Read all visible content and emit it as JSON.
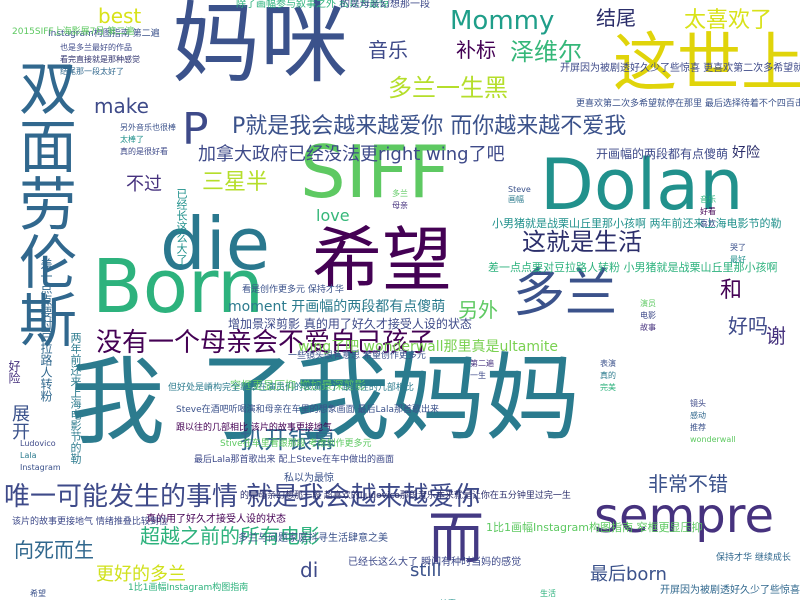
{
  "words": [
    {
      "text": "我",
      "color": "#2c7b8e"
    },
    {
      "text": "了我妈妈",
      "color": "#2a7b8e"
    },
    {
      "text": "妈咪",
      "color": "#3b528b"
    },
    {
      "text": "Born",
      "color": "#2db27d"
    },
    {
      "text": "die",
      "color": "#2a788e"
    },
    {
      "text": "SIFF",
      "color": "#5ec962"
    },
    {
      "text": "希望",
      "color": "#440154"
    },
    {
      "text": "Dolan",
      "color": "#21918c"
    },
    {
      "text": "这世上",
      "color": "#e0d40a"
    },
    {
      "text": "双面劳伦斯",
      "color": "#31688e"
    },
    {
      "text": "P就是我会越来越爱你 而你越来越不爱我",
      "color": "#3b528b"
    },
    {
      "text": "P",
      "color": "#3e4a89"
    },
    {
      "text": "sempre",
      "color": "#46327e"
    },
    {
      "text": "多兰",
      "color": "#3b528b"
    },
    {
      "text": "而",
      "color": "#443a83"
    },
    {
      "text": "唯一可能发生的事情 就是我会越来越爱你",
      "color": "#3e4a89"
    },
    {
      "text": "没有一个母亲会不爱自己孩子",
      "color": "#440154"
    },
    {
      "text": "Mommy",
      "color": "#1f9e89"
    },
    {
      "text": "太喜欢了",
      "color": "#d8e219"
    },
    {
      "text": "泽维尔",
      "color": "#35b779"
    },
    {
      "text": "多兰一生黑",
      "color": "#b5de2b"
    },
    {
      "text": "加拿大政府已经没法更right wing了吧",
      "color": "#3e4a89"
    },
    {
      "text": "三星半",
      "color": "#b5de2b"
    },
    {
      "text": "扒开银幕",
      "color": "#31688e"
    },
    {
      "text": "这就是生活",
      "color": "#2c2f6b"
    },
    {
      "text": "超越之前的所有电影",
      "color": "#2db27d"
    },
    {
      "text": "向死而生",
      "color": "#31688e"
    },
    {
      "text": "更好的多兰",
      "color": "#d0e11c"
    },
    {
      "text": "最后born",
      "color": "#3b528b"
    },
    {
      "text": "非常不错",
      "color": "#3b528b"
    },
    {
      "text": "make",
      "color": "#3e4a89"
    },
    {
      "text": "best",
      "color": "#d8e219"
    },
    {
      "text": "音乐",
      "color": "#3e4a89"
    },
    {
      "text": "补标",
      "color": "#440154"
    },
    {
      "text": "结尾",
      "color": "#2c2f6b"
    },
    {
      "text": "不过",
      "color": "#46327e"
    },
    {
      "text": "love",
      "color": "#35b779"
    },
    {
      "text": "另外",
      "color": "#5ec962"
    },
    {
      "text": "和",
      "color": "#440154"
    },
    {
      "text": "谢",
      "color": "#46327e"
    },
    {
      "text": "好吗",
      "color": "#3e4a89"
    },
    {
      "text": "di",
      "color": "#3e4a89"
    },
    {
      "text": "still",
      "color": "#3b528b"
    },
    {
      "text": "wing了吧 wonderwall那里真是ultamite",
      "color": "#7ad151"
    },
    {
      "text": "moment 开画幅的两段都有点傻萌",
      "color": "#2c7b8e"
    },
    {
      "text": "增加景深剪影 真的用了好久才接受人设的状态",
      "color": "#3e4a89"
    },
    {
      "text": "好险",
      "color": "#2c2f6b"
    },
    {
      "text": "开画幅的两段都有点傻萌",
      "color": "#3e4a89"
    },
    {
      "text": "小男猪就是战栗山丘里那小孩啊 两年前还来上海电影节的勒",
      "color": "#21918c"
    },
    {
      "text": "差一点点要对豆拉路人转粉 小男猪就是战栗山丘里那小孩啊",
      "color": "#2db27d"
    },
    {
      "text": "1比1画幅Instagram构图指南 窄框更显压抑",
      "color": "#5ec962"
    },
    {
      "text": "多兰与问题家庭抖寻生活肆意之美",
      "color": "#3b528b"
    },
    {
      "text": "已经长这么大了 瞬间有种时当妈的感觉",
      "color": "#3e4a89"
    },
    {
      "text": "开屏因为被剧透好久少了些惊喜",
      "color": "#31688e"
    },
    {
      "text": "窄框更显压抑 增加景深剪影",
      "color": "#5ec962"
    },
    {
      "text": "真的用了好久才接受人设的状态",
      "color": "#440154"
    },
    {
      "text": "开屏因为被剧透好久少了些惊喜 更喜欢第二次多希望就停在那里",
      "color": "#3e4a89"
    },
    {
      "text": "更喜欢第二次多希望就停在那里 最后选择待着不个四百击似的结尾",
      "color": "#3b528b"
    },
    {
      "text": "差一点点要对豆拉路人转粉",
      "color": "#31688e"
    },
    {
      "text": "两年前还来上海电影节的勒",
      "color": "#2c7b8e"
    },
    {
      "text": "已经长这么大了",
      "color": "#21918c"
    },
    {
      "text": "展开",
      "color": "#3b528b"
    },
    {
      "text": "好险",
      "color": "#46327e"
    },
    {
      "text": "一些镜头很有意思 希望创作更多元",
      "color": "#3b528b"
    },
    {
      "text": "除了画幅参与叙事之外 私以为最惊",
      "color": "#2db27d"
    },
    {
      "text": "的是母亲幻想那一段",
      "color": "#3e4a89"
    },
    {
      "text": "私以为最惊",
      "color": "#3b528b"
    },
    {
      "text": "的是母亲幻想那一段 超喜欢的Ludovico那段音乐本来就是让你在五分钟里过完一生",
      "color": "#2c2f6b"
    },
    {
      "text": "该片的故事更接地气 情绪推叠比较到位",
      "color": "#3e4a89"
    },
    {
      "text": "保持才华 继续成长",
      "color": "#31688e"
    },
    {
      "text": "Steve在酒吧听喝演和母亲在车里的想象画面 最后Lala那首歌出来",
      "color": "#3b528b"
    },
    {
      "text": "但好处是嵴构完全靠章在演员们的表演上了 跟以往的几部相比",
      "color": "#2c7b8e"
    },
    {
      "text": "最后Lala那首歌出来 配上Steve在车中做出的画面",
      "color": "#3e4a89"
    },
    {
      "text": "Stive在车里看跟那段 考虑创作更多元",
      "color": "#5ec962"
    },
    {
      "text": "跟以往的几部相比 该片的故事更接地气",
      "color": "#440154"
    },
    {
      "text": "看是创作更多元 保持才华",
      "color": "#3b528b"
    },
    {
      "text": "1比1画幅Instagram构图指南",
      "color": "#2db27d"
    },
    {
      "text": "Instagram构图指南 第二遍",
      "color": "#3b528b"
    },
    {
      "text": "2015SIFF上海影展7月 第二遍",
      "color": "#5ec962"
    },
    {
      "text": "也是多兰最好的作品",
      "color": "#3e4a89"
    },
    {
      "text": "看完直接就是那种感觉",
      "color": "#2c2f6b"
    },
    {
      "text": "结尾那一段太好了",
      "color": "#31688e"
    },
    {
      "text": "另外音乐也很棒",
      "color": "#3b528b"
    },
    {
      "text": "太棒了",
      "color": "#21918c"
    },
    {
      "text": "真的是很好看",
      "color": "#3e4a89"
    },
    {
      "text": "多兰",
      "color": "#5ec962"
    },
    {
      "text": "母亲",
      "color": "#46327e"
    },
    {
      "text": "Steve",
      "color": "#3b528b"
    },
    {
      "text": "画幅",
      "color": "#2c7b8e"
    },
    {
      "text": "音乐",
      "color": "#2db27d"
    },
    {
      "text": "好看",
      "color": "#440154"
    },
    {
      "text": "喜欢",
      "color": "#3e4a89"
    },
    {
      "text": "哭了",
      "color": "#3b528b"
    },
    {
      "text": "最好",
      "color": "#21918c"
    },
    {
      "text": "演员",
      "color": "#5ec962"
    },
    {
      "text": "电影",
      "color": "#3e4a89"
    },
    {
      "text": "故事",
      "color": "#46327e"
    },
    {
      "text": "表演",
      "color": "#3b528b"
    },
    {
      "text": "真的",
      "color": "#2c7b8e"
    },
    {
      "text": "完美",
      "color": "#2db27d"
    },
    {
      "text": "镜头",
      "color": "#3e4a89"
    },
    {
      "text": "感动",
      "color": "#31688e"
    },
    {
      "text": "推荐",
      "color": "#3b528b"
    },
    {
      "text": "wonderwall",
      "color": "#5ec962"
    },
    {
      "text": "Ludovico",
      "color": "#3e4a89"
    },
    {
      "text": "Lala",
      "color": "#2c7b8e"
    },
    {
      "text": "Instagram",
      "color": "#3b528b"
    },
    {
      "text": "第二遍",
      "color": "#46327e"
    },
    {
      "text": "一生",
      "color": "#3e4a89"
    },
    {
      "text": "生活",
      "color": "#2db27d"
    },
    {
      "text": "希望",
      "color": "#3b528b"
    },
    {
      "text": "惊喜",
      "color": "#21918c"
    },
    {
      "text": "结尾",
      "color": "#5ec962"
    },
    {
      "text": "剪影",
      "color": "#3e4a89"
    }
  ]
}
